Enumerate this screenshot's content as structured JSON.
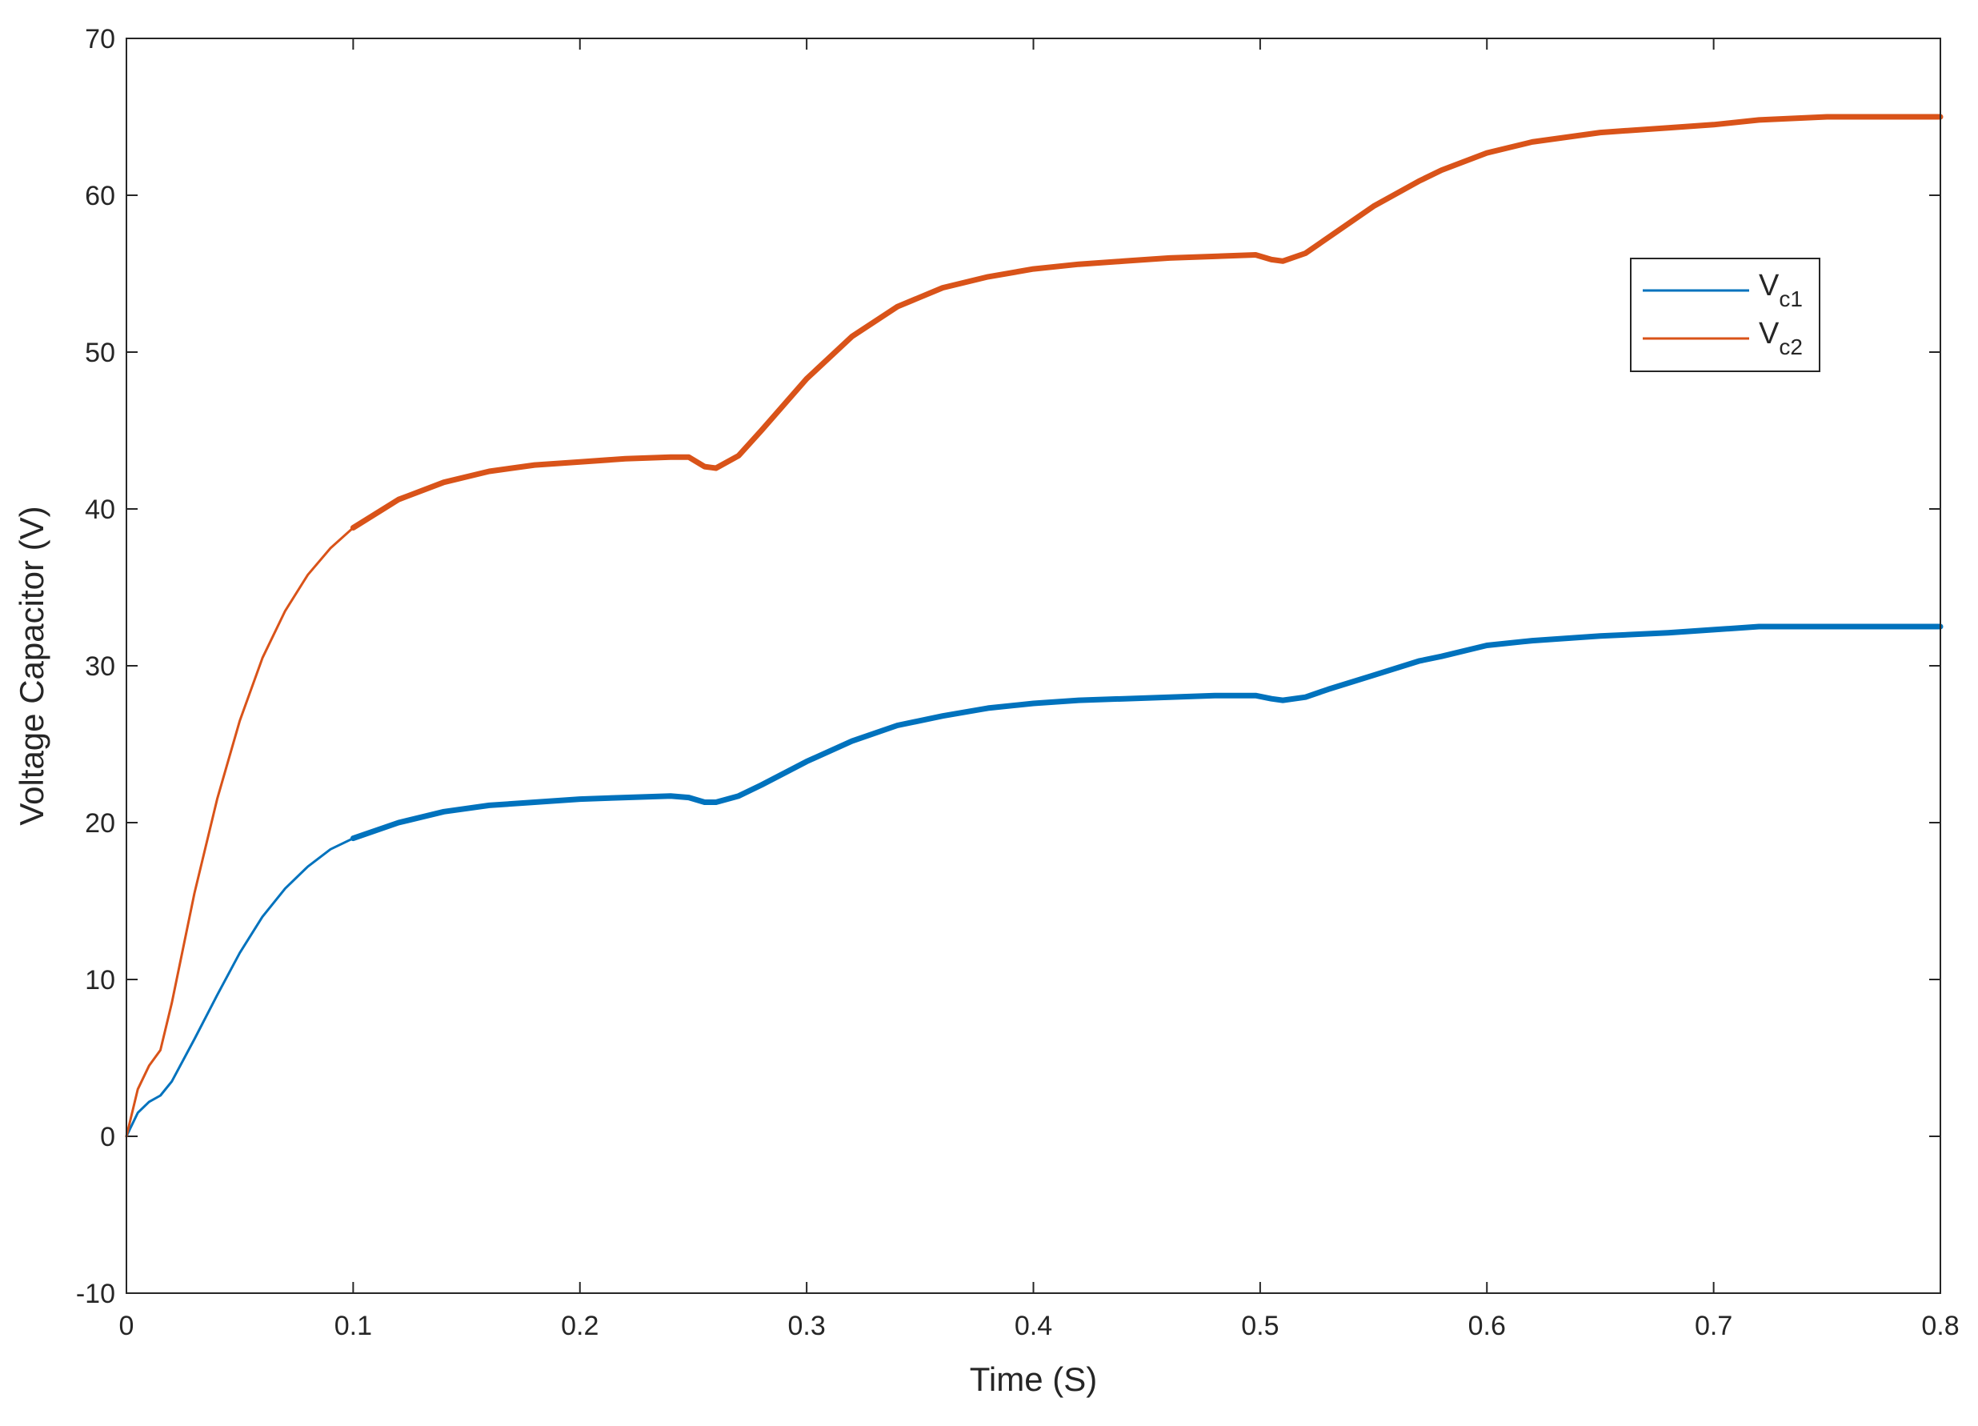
{
  "chart_data": {
    "type": "line",
    "xlabel": "Time (S)",
    "ylabel": "Voltage Capacitor (V)",
    "xlim": [
      0,
      0.8
    ],
    "ylim": [
      -10,
      70
    ],
    "xticks": [
      0,
      0.1,
      0.2,
      0.3,
      0.4,
      0.5,
      0.6,
      0.7,
      0.8
    ],
    "xtick_labels": [
      "0",
      "0.1",
      "0.2",
      "0.3",
      "0.4",
      "0.5",
      "0.6",
      "0.7",
      "0.8"
    ],
    "yticks": [
      -10,
      0,
      10,
      20,
      30,
      40,
      50,
      60,
      70
    ],
    "ytick_labels": [
      "-10",
      "0",
      "10",
      "20",
      "30",
      "40",
      "50",
      "60",
      "70"
    ],
    "grid": false,
    "legend_position": "top-right",
    "series": [
      {
        "name": "V_c1",
        "legend_main": "V",
        "legend_sub": "c1",
        "color": "#0072BD",
        "x": [
          0,
          0.005,
          0.01,
          0.015,
          0.02,
          0.03,
          0.04,
          0.05,
          0.06,
          0.07,
          0.08,
          0.09,
          0.1,
          0.12,
          0.14,
          0.16,
          0.18,
          0.2,
          0.22,
          0.24,
          0.248,
          0.255,
          0.26,
          0.27,
          0.28,
          0.3,
          0.32,
          0.34,
          0.36,
          0.38,
          0.4,
          0.42,
          0.44,
          0.46,
          0.48,
          0.498,
          0.505,
          0.51,
          0.52,
          0.53,
          0.55,
          0.57,
          0.58,
          0.6,
          0.62,
          0.65,
          0.68,
          0.7,
          0.72,
          0.75,
          0.8
        ],
        "y": [
          0,
          1.5,
          2.2,
          2.6,
          3.5,
          6.2,
          9.0,
          11.7,
          14.0,
          15.8,
          17.2,
          18.3,
          19.0,
          20.0,
          20.7,
          21.1,
          21.3,
          21.5,
          21.6,
          21.7,
          21.6,
          21.3,
          21.3,
          21.7,
          22.4,
          23.9,
          25.2,
          26.2,
          26.8,
          27.3,
          27.6,
          27.8,
          27.9,
          28.0,
          28.1,
          28.1,
          27.9,
          27.8,
          28.0,
          28.5,
          29.4,
          30.3,
          30.6,
          31.3,
          31.6,
          31.9,
          32.1,
          32.3,
          32.5,
          32.5,
          32.5
        ]
      },
      {
        "name": "V_c2",
        "legend_main": "V",
        "legend_sub": "c2",
        "color": "#D95319",
        "x": [
          0,
          0.005,
          0.01,
          0.015,
          0.02,
          0.03,
          0.04,
          0.05,
          0.06,
          0.07,
          0.08,
          0.09,
          0.1,
          0.12,
          0.14,
          0.16,
          0.18,
          0.2,
          0.22,
          0.24,
          0.248,
          0.255,
          0.26,
          0.27,
          0.28,
          0.3,
          0.32,
          0.34,
          0.36,
          0.38,
          0.4,
          0.42,
          0.44,
          0.46,
          0.48,
          0.498,
          0.505,
          0.51,
          0.52,
          0.53,
          0.55,
          0.57,
          0.58,
          0.6,
          0.62,
          0.65,
          0.68,
          0.7,
          0.72,
          0.75,
          0.8
        ],
        "y": [
          0,
          3.0,
          4.5,
          5.5,
          8.5,
          15.5,
          21.5,
          26.5,
          30.5,
          33.5,
          35.8,
          37.5,
          38.8,
          40.6,
          41.7,
          42.4,
          42.8,
          43.0,
          43.2,
          43.3,
          43.3,
          42.7,
          42.6,
          43.4,
          45.0,
          48.3,
          51.0,
          52.9,
          54.1,
          54.8,
          55.3,
          55.6,
          55.8,
          56.0,
          56.1,
          56.2,
          55.9,
          55.8,
          56.3,
          57.3,
          59.3,
          60.9,
          61.6,
          62.7,
          63.4,
          64.0,
          64.3,
          64.5,
          64.8,
          65.0,
          65.0
        ]
      }
    ]
  }
}
